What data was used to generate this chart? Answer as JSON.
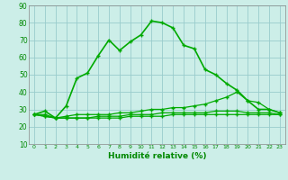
{
  "xlabel": "Humidité relative (%)",
  "bg_color": "#cceee8",
  "grid_color": "#99cccc",
  "line_color": "#00aa00",
  "line1": [
    27,
    29,
    25,
    32,
    48,
    51,
    61,
    70,
    64,
    69,
    73,
    81,
    80,
    77,
    67,
    65,
    53,
    50,
    45,
    41,
    35,
    30,
    30,
    28
  ],
  "line2": [
    27,
    27,
    25,
    26,
    27,
    27,
    27,
    27,
    28,
    28,
    29,
    30,
    30,
    31,
    31,
    32,
    33,
    35,
    37,
    40,
    35,
    34,
    30,
    28
  ],
  "line3": [
    27,
    26,
    25,
    25,
    25,
    25,
    26,
    26,
    26,
    27,
    27,
    27,
    28,
    28,
    28,
    28,
    28,
    29,
    29,
    29,
    28,
    28,
    28,
    27
  ],
  "line4": [
    27,
    26,
    25,
    25,
    25,
    25,
    25,
    25,
    25,
    26,
    26,
    26,
    26,
    27,
    27,
    27,
    27,
    27,
    27,
    27,
    27,
    27,
    27,
    27
  ],
  "ylim": [
    10,
    90
  ],
  "xlim": [
    -0.5,
    23.5
  ],
  "yticks": [
    10,
    20,
    30,
    40,
    50,
    60,
    70,
    80,
    90
  ],
  "xticks": [
    0,
    1,
    2,
    3,
    4,
    5,
    6,
    7,
    8,
    9,
    10,
    11,
    12,
    13,
    14,
    15,
    16,
    17,
    18,
    19,
    20,
    21,
    22,
    23
  ],
  "xlabel_fontsize": 6.5,
  "tick_fontsize": 5.5,
  "xlabel_color": "#008800",
  "tick_color": "#008800"
}
